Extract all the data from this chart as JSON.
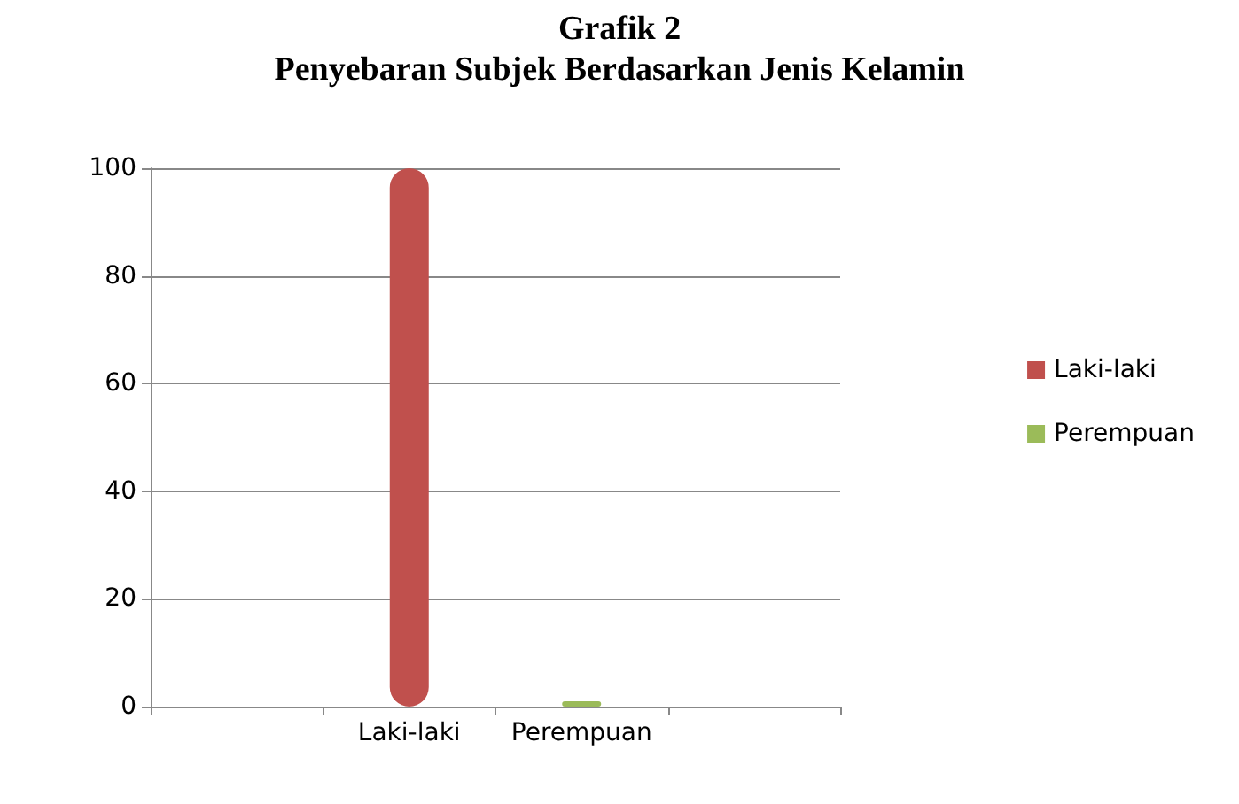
{
  "chart_data": {
    "type": "bar",
    "title": "Grafik 2",
    "subtitle": "Penyebaran Subjek Berdasarkan Jenis Kelamin",
    "categories": [
      null,
      "Laki-laki",
      "Perempuan",
      null
    ],
    "series": [
      {
        "name": "Laki-laki",
        "color": "#c0504d",
        "values": [
          null,
          100,
          null,
          null
        ]
      },
      {
        "name": "Perempuan",
        "color": "#9bbb59",
        "values": [
          null,
          null,
          1,
          null
        ]
      }
    ],
    "ylim": [
      0,
      100
    ],
    "yticks": [
      0,
      20,
      40,
      60,
      80,
      100
    ],
    "grid": "y",
    "legend": "right"
  }
}
